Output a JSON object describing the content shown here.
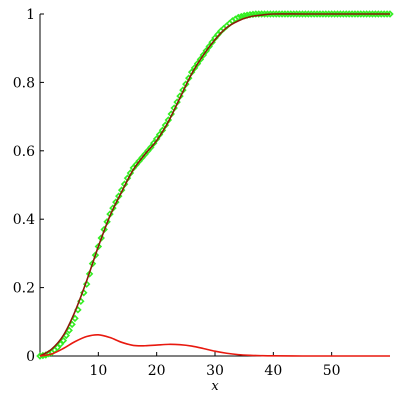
{
  "chart_data": {
    "type": "line",
    "title": "",
    "xlabel": "x",
    "ylabel": "",
    "xlim": [
      0,
      60
    ],
    "ylim": [
      0,
      1
    ],
    "x_ticks": [
      10,
      20,
      30,
      40,
      50
    ],
    "y_ticks": [
      0,
      0.2,
      0.4,
      0.6,
      0.8,
      1
    ],
    "y_tick_labels": [
      "0",
      "0.2",
      "0.4",
      "0.6",
      "0.8",
      "1"
    ],
    "grid": false,
    "legend": "none",
    "series": [
      {
        "kind": "line",
        "color": "#8b1a0a",
        "x": [
          0,
          2,
          4,
          6,
          8,
          10,
          12,
          14,
          16,
          18,
          20,
          22,
          24,
          26,
          28,
          30,
          32,
          34,
          36,
          38,
          40,
          45,
          50,
          55,
          60
        ],
        "y": [
          0,
          0.02,
          0.06,
          0.13,
          0.22,
          0.32,
          0.41,
          0.48,
          0.545,
          0.59,
          0.63,
          0.685,
          0.755,
          0.825,
          0.88,
          0.925,
          0.96,
          0.98,
          0.992,
          0.997,
          1.0,
          1.0,
          1.0,
          1.0,
          1.0
        ]
      },
      {
        "kind": "scatter",
        "color": "#33ee22",
        "x": [
          0,
          1,
          2,
          3,
          4,
          5,
          6,
          7,
          8,
          9,
          10,
          11,
          12,
          13,
          14,
          15,
          16,
          17,
          18,
          19,
          20,
          21,
          22,
          23,
          24,
          25,
          26,
          27,
          28,
          29,
          30,
          31,
          32,
          33,
          34,
          35,
          36,
          37,
          38,
          39,
          40,
          41,
          42,
          43,
          44,
          45,
          46,
          47,
          48,
          49,
          50,
          51,
          52,
          53,
          54,
          55,
          56,
          57,
          58,
          59,
          60
        ],
        "y": [
          0,
          0.003,
          0.01,
          0.025,
          0.045,
          0.075,
          0.11,
          0.16,
          0.21,
          0.27,
          0.32,
          0.37,
          0.415,
          0.45,
          0.485,
          0.52,
          0.55,
          0.57,
          0.59,
          0.61,
          0.635,
          0.66,
          0.69,
          0.725,
          0.76,
          0.795,
          0.83,
          0.855,
          0.88,
          0.905,
          0.93,
          0.95,
          0.965,
          0.98,
          0.99,
          0.995,
          0.998,
          1.0,
          1.0,
          1.0,
          1.0,
          1.0,
          1.0,
          1.0,
          1.0,
          1.0,
          1.0,
          1.0,
          1.0,
          1.0,
          1.0,
          1.0,
          1.0,
          1.0,
          1.0,
          1.0,
          1.0,
          1.0,
          1.0,
          1.0,
          1.0
        ]
      },
      {
        "kind": "line",
        "color": "#e8190f",
        "x": [
          0,
          2,
          4,
          6,
          8,
          10,
          12,
          14,
          16,
          18,
          20,
          22,
          24,
          26,
          28,
          30,
          32,
          34,
          36,
          38,
          40,
          45,
          50,
          55,
          60
        ],
        "y": [
          0,
          0.006,
          0.022,
          0.042,
          0.057,
          0.062,
          0.054,
          0.04,
          0.031,
          0.03,
          0.032,
          0.034,
          0.033,
          0.029,
          0.022,
          0.014,
          0.008,
          0.004,
          0.002,
          0.001,
          0.0005,
          0,
          0,
          0,
          0
        ]
      }
    ]
  }
}
